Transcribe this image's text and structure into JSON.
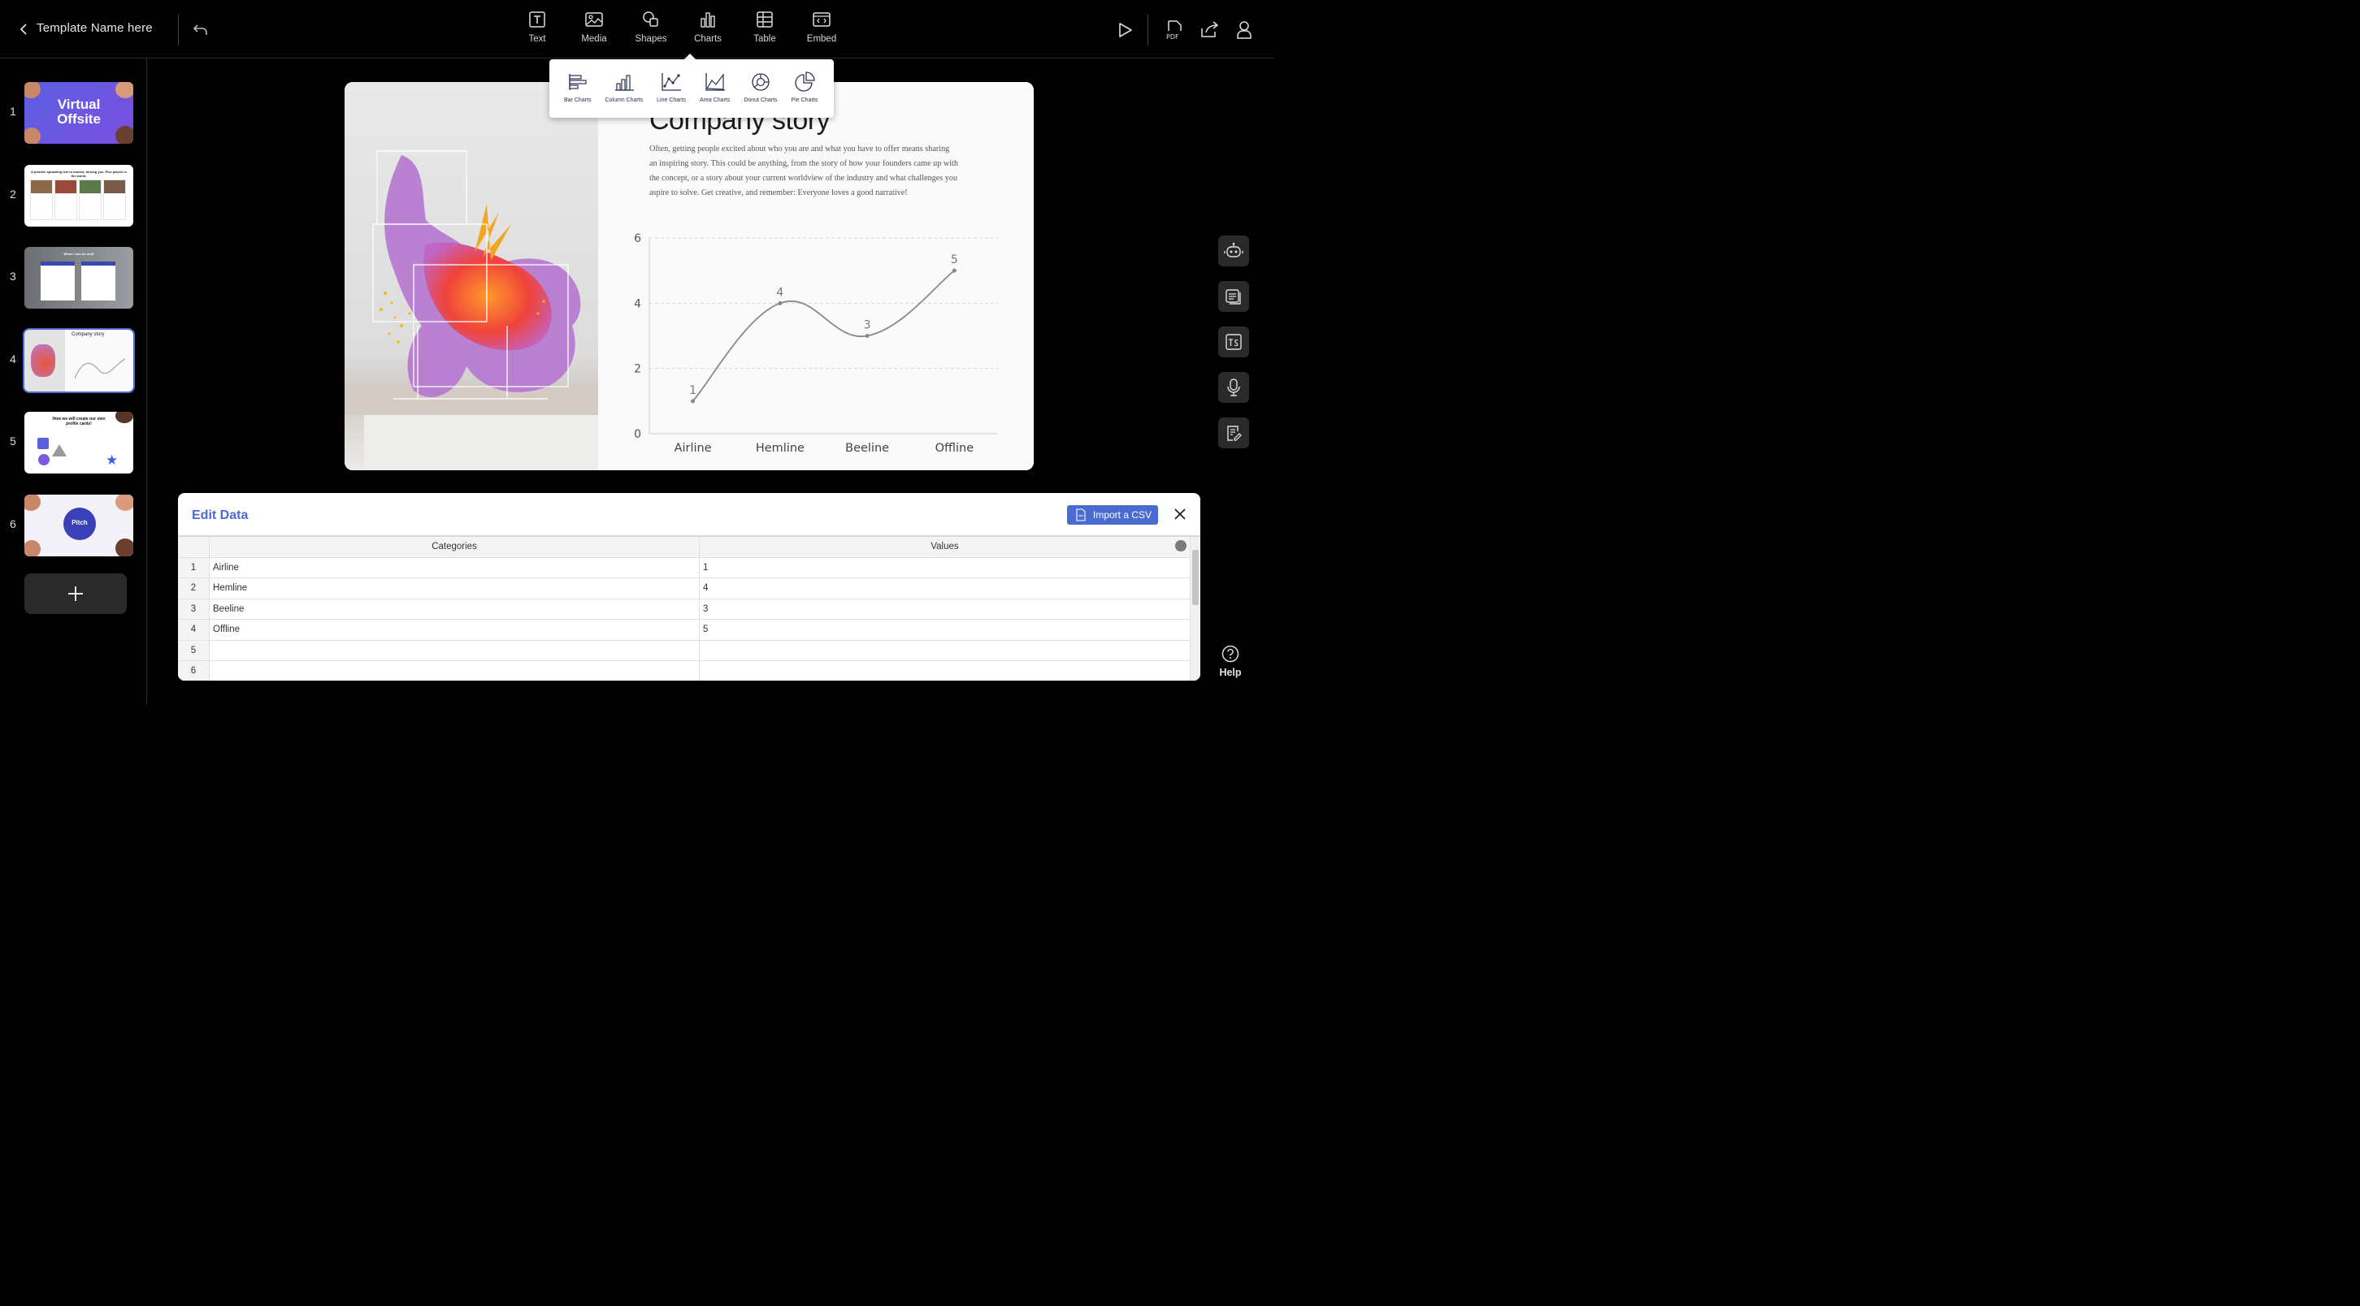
{
  "header": {
    "template_name": "Template Name here",
    "tools": [
      {
        "label": "Text",
        "icon": "text-icon"
      },
      {
        "label": "Media",
        "icon": "media-icon"
      },
      {
        "label": "Shapes",
        "icon": "shapes-icon"
      },
      {
        "label": "Charts",
        "icon": "charts-icon"
      },
      {
        "label": "Table",
        "icon": "table-icon"
      },
      {
        "label": "Embed",
        "icon": "embed-icon"
      }
    ],
    "pdf_label": "PDF"
  },
  "chart_menu": {
    "items": [
      {
        "label": "Bar Charts",
        "icon": "bar-chart-icon"
      },
      {
        "label": "Column Charts",
        "icon": "column-chart-icon"
      },
      {
        "label": "Line Charts",
        "icon": "line-chart-icon"
      },
      {
        "label": "Area Charts",
        "icon": "area-chart-icon"
      },
      {
        "label": "Donut Charts",
        "icon": "donut-chart-icon"
      },
      {
        "label": "Pie Charts",
        "icon": "pie-chart-icon"
      }
    ]
  },
  "sidebar": {
    "slides": [
      {
        "num": "1",
        "title_a": "Virtual",
        "title_b": "Offsite"
      },
      {
        "num": "2",
        "heading": "A pristine sprawling feel to market, turning you. Five places in the world."
      },
      {
        "num": "3",
        "heading": "When I can do stuff"
      },
      {
        "num": "4",
        "heading": "Company story"
      },
      {
        "num": "5",
        "heading": "How we will create our own profile cards!"
      },
      {
        "num": "6",
        "heading": "Pitch"
      }
    ]
  },
  "slide": {
    "title": "Company story",
    "body": "Often, getting people excited about who you are and what you have to offer means sharing an inspiring story. This could be anything, from the story of how your founders came up with the concept, or a story about your current worldview of the industry and what challenges you aspire to solve. Get creative, and remember: Everyone loves a good narrative!"
  },
  "chart_data": {
    "type": "line",
    "categories": [
      "Airline",
      "Hemline",
      "Beeline",
      "Offline"
    ],
    "values": [
      1,
      4,
      3,
      5
    ],
    "title": "",
    "xlabel": "",
    "ylabel": "",
    "ylim": [
      0,
      6
    ],
    "yticks": [
      0,
      2,
      4,
      6
    ],
    "grid": true,
    "line_color": "#8a8a8a"
  },
  "edit_data": {
    "title": "Edit Data",
    "import_label": "Import a CSV",
    "columns": [
      "Categories",
      "Values"
    ],
    "rows": [
      {
        "n": "1",
        "cat": "Airline",
        "val": "1"
      },
      {
        "n": "2",
        "cat": "Hemline",
        "val": "4"
      },
      {
        "n": "3",
        "cat": "Beeline",
        "val": "3"
      },
      {
        "n": "4",
        "cat": "Offline",
        "val": "5"
      },
      {
        "n": "5",
        "cat": "",
        "val": ""
      },
      {
        "n": "6",
        "cat": "",
        "val": ""
      }
    ]
  },
  "help": {
    "label": "Help"
  },
  "colors": {
    "accent": "#4a6bd0",
    "rail": "#2a2a2a"
  }
}
